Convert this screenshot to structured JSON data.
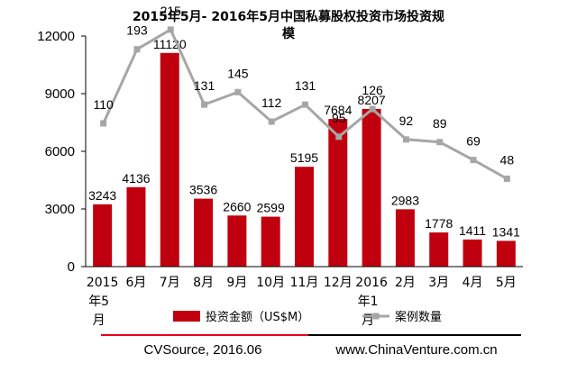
{
  "chart_data": {
    "type": "bar",
    "title": "2015年5月- 2016年5月中国私募股权投资市场投资规模",
    "categories": [
      "2015年5月",
      "6月",
      "7月",
      "8月",
      "9月",
      "10月",
      "11月",
      "12月",
      "2016年1月",
      "2月",
      "3月",
      "4月",
      "5月"
    ],
    "y_ticks": [
      "0",
      "3000",
      "6000",
      "9000",
      "12000"
    ],
    "ylim": [
      0,
      12000
    ],
    "series": [
      {
        "name": "投资金额（US$M）",
        "type": "bar",
        "color": "#c0000f",
        "values": [
          3243,
          4136,
          11120,
          3536,
          2660,
          2599,
          5195,
          7684,
          8207,
          2983,
          1778,
          1411,
          1341
        ]
      },
      {
        "name": "案例数量",
        "type": "line",
        "color": "#a6a6a6",
        "values": [
          110,
          193,
          215,
          131,
          145,
          112,
          131,
          95,
          126,
          92,
          89,
          69,
          48
        ]
      }
    ],
    "legend_position": "bottom",
    "grid": false
  },
  "footer": {
    "source": "CVSource, 2016.06",
    "website": "www.ChinaVenture.com.cn",
    "line_colors": [
      "#e8001c",
      "#000000"
    ]
  }
}
